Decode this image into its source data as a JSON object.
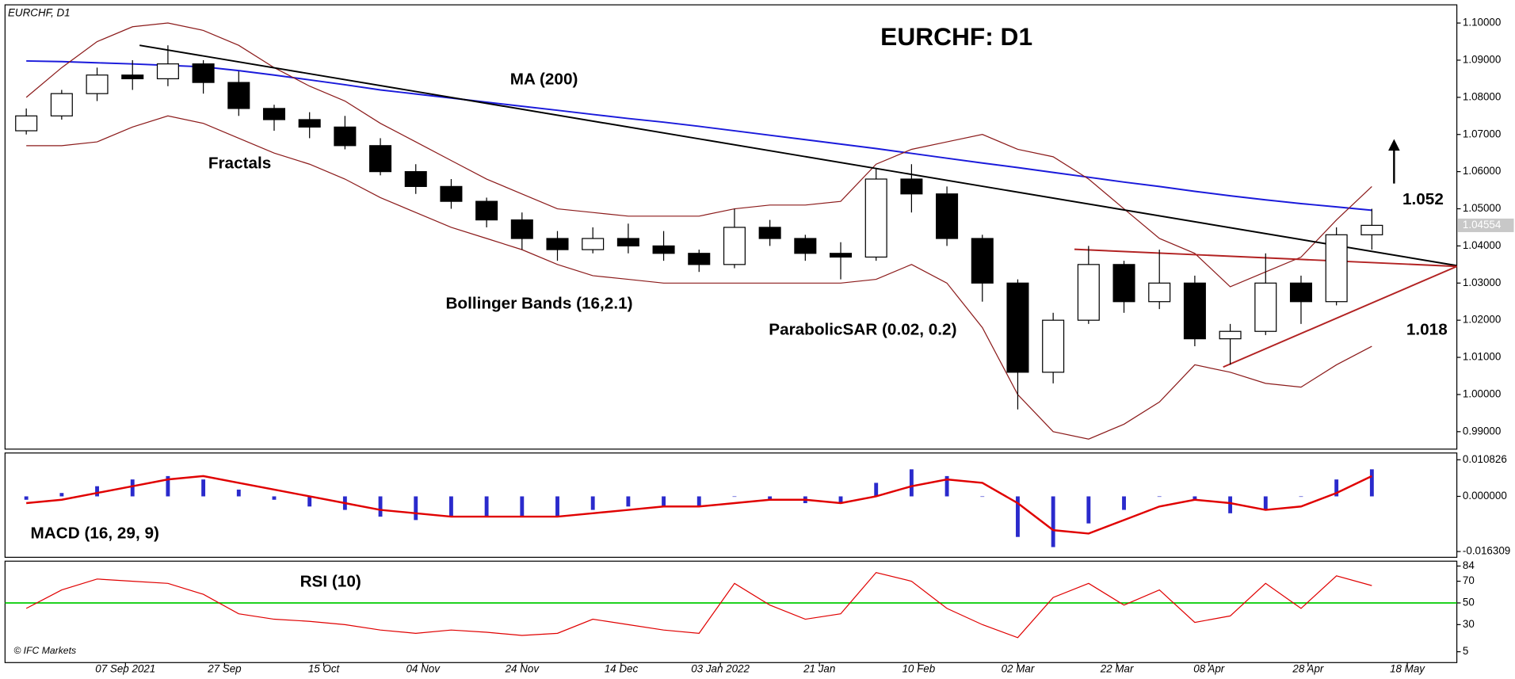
{
  "chart_data": [
    {
      "type": "candlestick",
      "name": "EURCHF, D1",
      "title": "EURCHF: D1",
      "x": [
        "2021-08-16",
        "2021-08-23",
        "2021-08-30",
        "2021-09-06",
        "2021-09-13",
        "2021-09-20",
        "2021-09-27",
        "2021-10-04",
        "2021-10-11",
        "2021-10-18",
        "2021-10-25",
        "2021-11-01",
        "2021-11-08",
        "2021-11-15",
        "2021-11-22",
        "2021-11-29",
        "2021-12-06",
        "2021-12-13",
        "2021-12-20",
        "2021-12-27",
        "2022-01-03",
        "2022-01-10",
        "2022-01-17",
        "2022-01-24",
        "2022-01-31",
        "2022-02-07",
        "2022-02-14",
        "2022-02-21",
        "2022-02-28",
        "2022-03-07",
        "2022-03-14",
        "2022-03-21",
        "2022-03-28",
        "2022-04-04",
        "2022-04-11",
        "2022-04-18",
        "2022-04-25",
        "2022-05-02",
        "2022-05-09"
      ],
      "open": [
        1.071,
        1.075,
        1.081,
        1.086,
        1.085,
        1.089,
        1.084,
        1.077,
        1.074,
        1.072,
        1.067,
        1.06,
        1.056,
        1.052,
        1.047,
        1.042,
        1.039,
        1.042,
        1.04,
        1.038,
        1.035,
        1.045,
        1.042,
        1.038,
        1.037,
        1.058,
        1.054,
        1.042,
        1.03,
        1.006,
        1.02,
        1.035,
        1.025,
        1.03,
        1.015,
        1.017,
        1.03,
        1.025,
        1.043
      ],
      "high": [
        1.077,
        1.082,
        1.088,
        1.09,
        1.094,
        1.09,
        1.087,
        1.078,
        1.076,
        1.075,
        1.069,
        1.062,
        1.058,
        1.053,
        1.049,
        1.044,
        1.045,
        1.046,
        1.044,
        1.039,
        1.05,
        1.047,
        1.043,
        1.041,
        1.061,
        1.062,
        1.056,
        1.043,
        1.031,
        1.022,
        1.04,
        1.036,
        1.039,
        1.032,
        1.019,
        1.038,
        1.032,
        1.045,
        1.05
      ],
      "low": [
        1.07,
        1.074,
        1.079,
        1.082,
        1.083,
        1.081,
        1.075,
        1.071,
        1.069,
        1.066,
        1.059,
        1.054,
        1.05,
        1.045,
        1.039,
        1.036,
        1.038,
        1.038,
        1.036,
        1.033,
        1.034,
        1.04,
        1.036,
        1.031,
        1.036,
        1.049,
        1.04,
        1.025,
        0.996,
        1.003,
        1.019,
        1.022,
        1.023,
        1.013,
        1.008,
        1.016,
        1.019,
        1.024,
        1.039
      ],
      "close": [
        1.075,
        1.081,
        1.086,
        1.085,
        1.089,
        1.084,
        1.077,
        1.074,
        1.072,
        1.067,
        1.06,
        1.056,
        1.052,
        1.047,
        1.042,
        1.039,
        1.042,
        1.04,
        1.038,
        1.035,
        1.045,
        1.042,
        1.038,
        1.037,
        1.058,
        1.054,
        1.042,
        1.03,
        1.006,
        1.02,
        1.035,
        1.025,
        1.03,
        1.015,
        1.017,
        1.03,
        1.025,
        1.043,
        1.04554
      ],
      "up_color": "#ffffff",
      "down_color": "#000000",
      "last_price": 1.04554,
      "overlays": [
        {
          "label": "MA (200)",
          "color": "#1a1adb",
          "values": [
            1.0898,
            1.0896,
            1.0893,
            1.089,
            1.0886,
            1.0882,
            1.0872,
            1.086,
            1.0847,
            1.0834,
            1.082,
            1.0809,
            1.0798,
            1.0787,
            1.0776,
            1.0765,
            1.0754,
            1.0743,
            1.0733,
            1.0722,
            1.071,
            1.0698,
            1.0686,
            1.0674,
            1.0662,
            1.0649,
            1.0636,
            1.0623,
            1.0611,
            1.0598,
            1.0585,
            1.0572,
            1.056,
            1.0547,
            1.0535,
            1.0524,
            1.0514,
            1.0505,
            1.0496
          ]
        },
        {
          "label": "Bollinger Bands (16,2.1)",
          "color": "#8b1a1a",
          "upper": [
            1.08,
            1.088,
            1.095,
            1.099,
            1.1,
            1.098,
            1.094,
            1.088,
            1.083,
            1.079,
            1.073,
            1.068,
            1.063,
            1.058,
            1.054,
            1.05,
            1.049,
            1.048,
            1.048,
            1.048,
            1.05,
            1.051,
            1.051,
            1.052,
            1.062,
            1.066,
            1.068,
            1.07,
            1.066,
            1.064,
            1.058,
            1.05,
            1.042,
            1.038,
            1.029,
            1.033,
            1.037,
            1.047,
            1.056
          ],
          "lower": [
            1.067,
            1.067,
            1.068,
            1.072,
            1.075,
            1.073,
            1.069,
            1.065,
            1.062,
            1.058,
            1.053,
            1.049,
            1.045,
            1.042,
            1.039,
            1.035,
            1.032,
            1.031,
            1.03,
            1.03,
            1.03,
            1.03,
            1.03,
            1.03,
            1.031,
            1.035,
            1.03,
            1.018,
            1.0,
            0.99,
            0.988,
            0.992,
            0.998,
            1.008,
            1.006,
            1.003,
            1.002,
            1.008,
            1.013
          ]
        }
      ],
      "trendlines": [
        {
          "color": "#000000",
          "x": [
            "2021-09-09",
            "2022-05-27"
          ],
          "values": [
            1.094,
            1.0347
          ]
        },
        {
          "color": "#b22222",
          "x": [
            "2022-03-14",
            "2022-05-27"
          ],
          "values": [
            1.0391,
            1.0345
          ]
        },
        {
          "color": "#b22222",
          "x": [
            "2022-04-12",
            "2022-05-27"
          ],
          "values": [
            1.0074,
            1.0345
          ]
        }
      ],
      "annotations": [
        "Fractals",
        "ParabolicSAR (0.02, 0.2)",
        "1.052",
        "1.018"
      ],
      "xlim": [
        "2021-08-13",
        "2022-05-27"
      ],
      "xticks": [
        {
          "value": "2021-09-07",
          "label": "07 Sep 2021"
        },
        {
          "value": "2021-09-27",
          "label": "27 Sep"
        },
        {
          "value": "2021-10-15",
          "label": "15 Oct"
        },
        {
          "value": "2021-11-04",
          "label": "04 Nov"
        },
        {
          "value": "2021-11-24",
          "label": "24 Nov"
        },
        {
          "value": "2021-12-14",
          "label": "14 Dec"
        },
        {
          "value": "2022-01-03",
          "label": "03 Jan 2022"
        },
        {
          "value": "2022-01-21",
          "label": "21 Jan"
        },
        {
          "value": "2022-02-10",
          "label": "10 Feb"
        },
        {
          "value": "2022-03-02",
          "label": "02 Mar"
        },
        {
          "value": "2022-03-22",
          "label": "22 Mar"
        },
        {
          "value": "2022-04-08",
          "label": "08 Apr"
        },
        {
          "value": "2022-04-28",
          "label": "28 Apr"
        },
        {
          "value": "2022-05-18",
          "label": "18 May"
        }
      ],
      "ylim": [
        0.9853,
        1.1049
      ],
      "yticks": [
        {
          "value": 1.1,
          "label": "1.10000"
        },
        {
          "value": 1.09,
          "label": "1.09000"
        },
        {
          "value": 1.08,
          "label": "1.08000"
        },
        {
          "value": 1.07,
          "label": "1.07000"
        },
        {
          "value": 1.06,
          "label": "1.06000"
        },
        {
          "value": 1.05,
          "label": "1.05000"
        },
        {
          "value": 1.04,
          "label": "1.04000"
        },
        {
          "value": 1.03,
          "label": "1.03000"
        },
        {
          "value": 1.02,
          "label": "1.02000"
        },
        {
          "value": 1.01,
          "label": "1.01000"
        },
        {
          "value": 1.0,
          "label": "1.00000"
        },
        {
          "value": 0.99,
          "label": "0.99000"
        }
      ]
    },
    {
      "type": "macd",
      "title": "MACD (16, 29, 9)",
      "color": "#2a2acc",
      "values": [
        -0.001,
        0.001,
        0.003,
        0.005,
        0.006,
        0.005,
        0.002,
        -0.001,
        -0.003,
        -0.004,
        -0.006,
        -0.007,
        -0.006,
        -0.006,
        -0.006,
        -0.006,
        -0.004,
        -0.003,
        -0.003,
        -0.003,
        0.0,
        -0.001,
        -0.002,
        -0.002,
        0.004,
        0.008,
        0.006,
        0.0,
        -0.012,
        -0.015,
        -0.008,
        -0.004,
        0.0,
        -0.001,
        -0.005,
        -0.004,
        0.0,
        0.005,
        0.008
      ],
      "signal": {
        "color": "#e00000",
        "values": [
          -0.002,
          -0.001,
          0.001,
          0.003,
          0.005,
          0.006,
          0.004,
          0.002,
          0.0,
          -0.002,
          -0.004,
          -0.005,
          -0.006,
          -0.006,
          -0.006,
          -0.006,
          -0.005,
          -0.004,
          -0.003,
          -0.003,
          -0.002,
          -0.001,
          -0.001,
          -0.002,
          0.0,
          0.003,
          0.005,
          0.004,
          -0.002,
          -0.01,
          -0.011,
          -0.007,
          -0.003,
          -0.001,
          -0.002,
          -0.004,
          -0.003,
          0.001,
          0.006
        ]
      },
      "ylim": [
        -0.01802,
        0.01283
      ],
      "yticks": [
        0.010826,
        {
          "value": 0,
          "label": "0.000000"
        },
        -0.016309
      ]
    },
    {
      "type": "rsi",
      "title": "RSI (10)",
      "color": "#e00000",
      "values": [
        45,
        62,
        72,
        70,
        68,
        58,
        40,
        35,
        33,
        30,
        25,
        22,
        25,
        23,
        20,
        22,
        35,
        30,
        25,
        22,
        68,
        48,
        35,
        40,
        78,
        70,
        45,
        30,
        18,
        55,
        68,
        48,
        62,
        32,
        38,
        68,
        45,
        75,
        66
      ],
      "level": {
        "value": 50,
        "color": "#00cc00"
      },
      "ylim": [
        -5,
        88.5
      ],
      "yticks": [
        84,
        70,
        50,
        30,
        5
      ]
    }
  ],
  "footer": {
    "copyright": "© IFC Markets"
  }
}
